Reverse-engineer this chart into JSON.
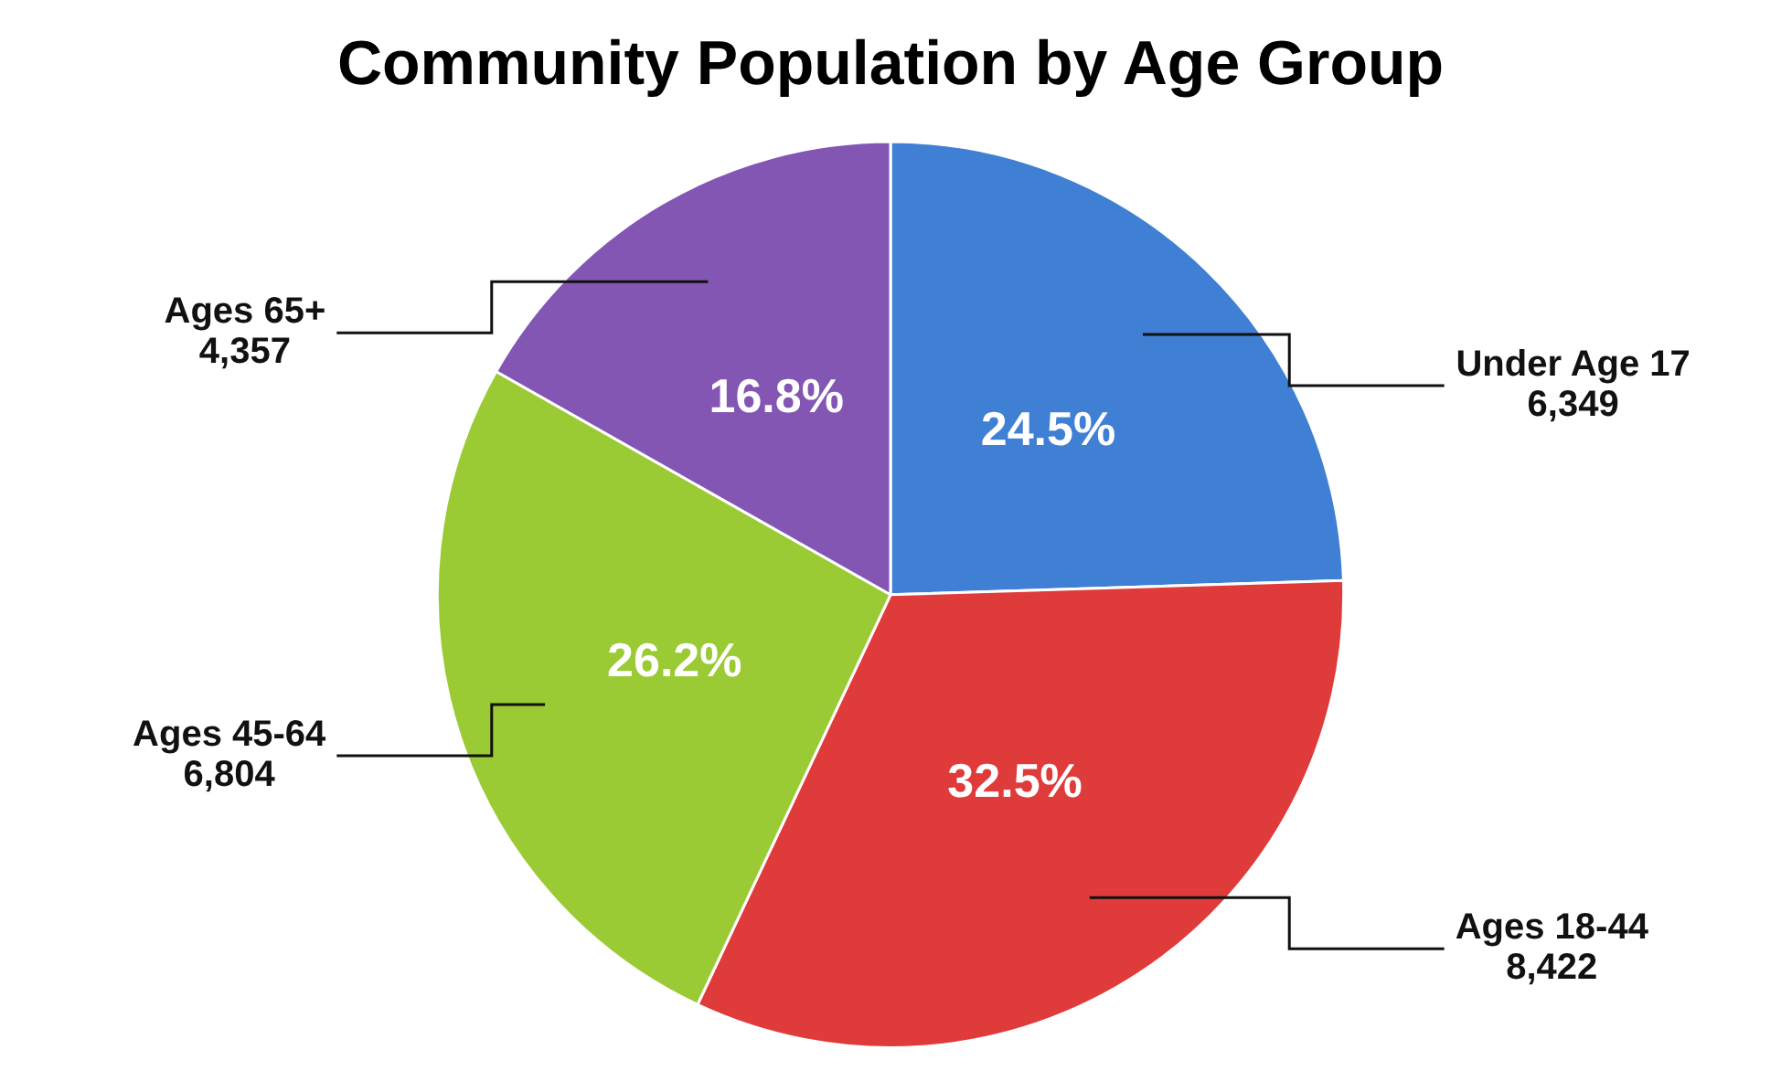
{
  "chart_data": {
    "type": "pie",
    "title": "Community Population by Age Group",
    "categories": [
      "Under Age 17\n6,349",
      "Ages 18-44\n8,422",
      "Ages 45-64\n6,804",
      "Ages 65+\n4,357"
    ],
    "values": [
      24.5,
      32.5,
      26.2,
      16.8
    ],
    "value_labels": [
      "24.5%",
      "32.5%",
      "26.2%",
      "16.8%"
    ],
    "colors": [
      "#3f7fd4",
      "#e03b3b",
      "#9acb34",
      "#8456b4"
    ],
    "legend": false
  }
}
